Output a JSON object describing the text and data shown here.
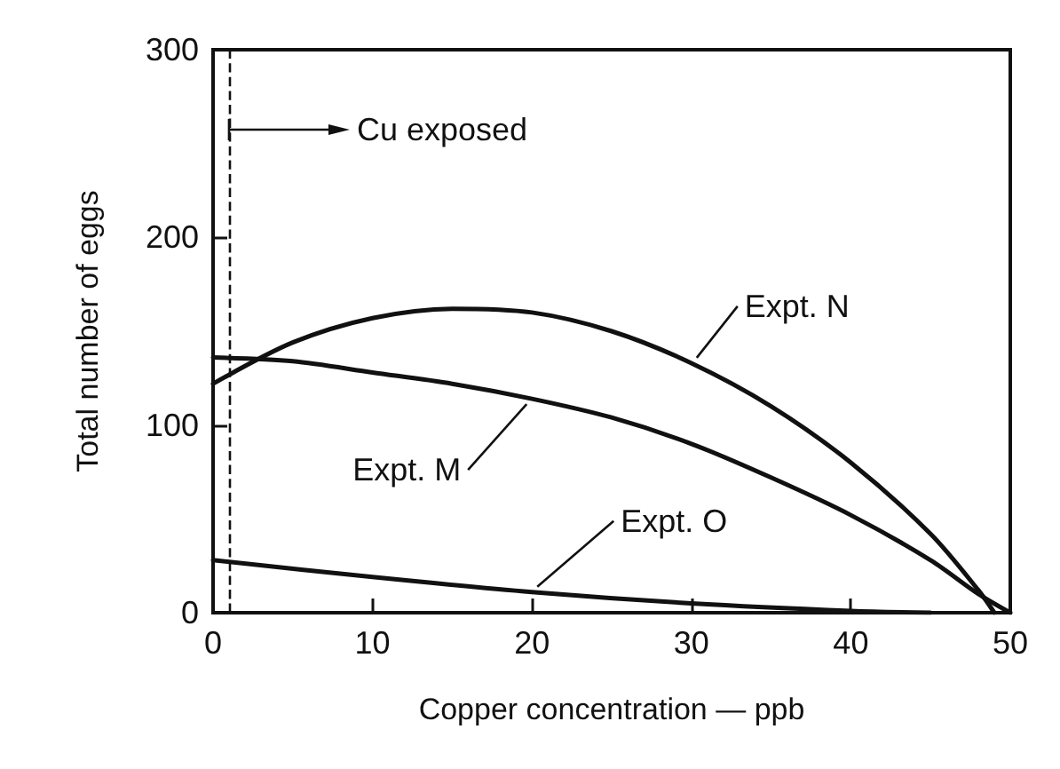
{
  "chart_data": {
    "type": "line",
    "xlabel": "Copper concentration — ppb",
    "ylabel": "Total number of eggs",
    "xlim": [
      0,
      50
    ],
    "xticks": [
      0,
      10,
      20,
      30,
      40,
      50
    ],
    "ylim": [
      0,
      300
    ],
    "yticks": [
      0,
      100,
      200,
      300
    ],
    "grid": false,
    "legend": false,
    "marker": "none",
    "line_style": "solid",
    "series": [
      {
        "name": "Expt. N",
        "color": "#111111",
        "x": [
          0,
          5,
          10,
          15,
          20,
          25,
          30,
          35,
          40,
          45,
          48,
          49
        ],
        "values": [
          122,
          144,
          157,
          162,
          160,
          150,
          133,
          110,
          80,
          42,
          12,
          0
        ]
      },
      {
        "name": "Expt. M",
        "color": "#111111",
        "x": [
          0,
          5,
          10,
          15,
          20,
          25,
          30,
          35,
          40,
          45,
          48,
          50
        ],
        "values": [
          136,
          134,
          128,
          122,
          114,
          104,
          90,
          72,
          52,
          28,
          10,
          0
        ]
      },
      {
        "name": "Expt. O",
        "color": "#111111",
        "x": [
          0,
          10,
          20,
          30,
          40,
          45
        ],
        "values": [
          28,
          19,
          11,
          5,
          1,
          0
        ]
      }
    ],
    "ref_lines": [
      {
        "axis": "x",
        "value": 1,
        "label": "Cu exposed",
        "line_style": "dashed"
      }
    ]
  }
}
